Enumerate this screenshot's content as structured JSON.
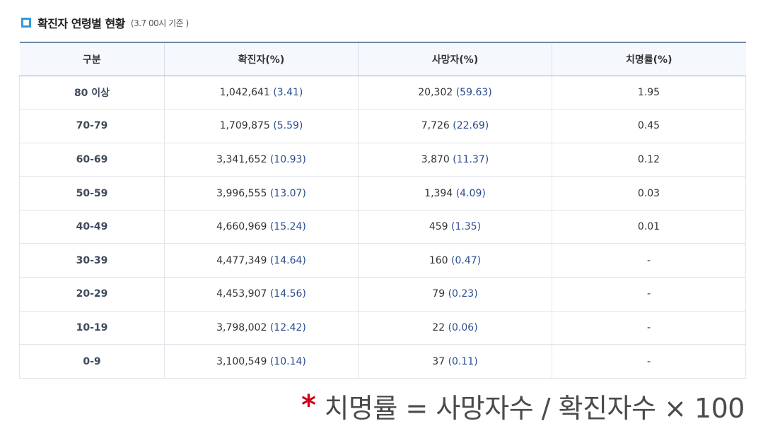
{
  "header": {
    "title": "확진자 연령별 현황",
    "subtitle": "(3.7 00시 기준 )"
  },
  "table": {
    "columns": [
      "구분",
      "확진자(%)",
      "사망자(%)",
      "치명률(%)"
    ],
    "rows": [
      {
        "age": "80 이상",
        "cases": "1,042,641",
        "cases_pct": "(3.41)",
        "deaths": "20,302",
        "deaths_pct": "(59.63)",
        "fatality": "1.95"
      },
      {
        "age": "70-79",
        "cases": "1,709,875",
        "cases_pct": "(5.59)",
        "deaths": "7,726",
        "deaths_pct": "(22.69)",
        "fatality": "0.45"
      },
      {
        "age": "60-69",
        "cases": "3,341,652",
        "cases_pct": "(10.93)",
        "deaths": "3,870",
        "deaths_pct": "(11.37)",
        "fatality": "0.12"
      },
      {
        "age": "50-59",
        "cases": "3,996,555",
        "cases_pct": "(13.07)",
        "deaths": "1,394",
        "deaths_pct": "(4.09)",
        "fatality": "0.03"
      },
      {
        "age": "40-49",
        "cases": "4,660,969",
        "cases_pct": "(15.24)",
        "deaths": "459",
        "deaths_pct": "(1.35)",
        "fatality": "0.01"
      },
      {
        "age": "30-39",
        "cases": "4,477,349",
        "cases_pct": "(14.64)",
        "deaths": "160",
        "deaths_pct": "(0.47)",
        "fatality": "-"
      },
      {
        "age": "20-29",
        "cases": "4,453,907",
        "cases_pct": "(14.56)",
        "deaths": "79",
        "deaths_pct": "(0.23)",
        "fatality": "-"
      },
      {
        "age": "10-19",
        "cases": "3,798,002",
        "cases_pct": "(12.42)",
        "deaths": "22",
        "deaths_pct": "(0.06)",
        "fatality": "-"
      },
      {
        "age": "0-9",
        "cases": "3,100,549",
        "cases_pct": "(10.14)",
        "deaths": "37",
        "deaths_pct": "(0.11)",
        "fatality": "-"
      }
    ]
  },
  "footnote": {
    "marker": "*",
    "text": "치명률 = 사망자수 / 확진자수 × 100"
  },
  "colors": {
    "accent": "#2f9bd6",
    "value_blue": "#2a4d8f",
    "marker_red": "#d0021b"
  }
}
